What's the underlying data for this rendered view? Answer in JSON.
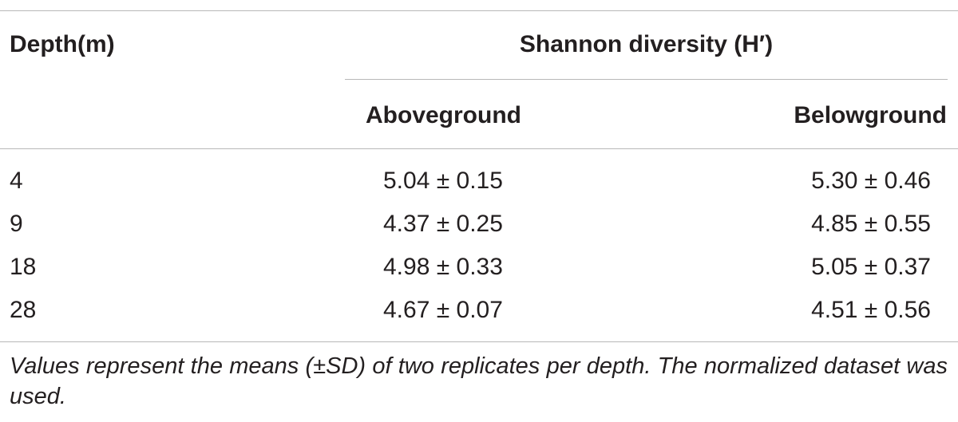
{
  "table": {
    "headers": {
      "depth": "Depth(m)",
      "group": "Shannon diversity (H′)",
      "aboveground": "Aboveground",
      "belowground": "Belowground"
    },
    "rows": [
      {
        "depth": "4",
        "aboveground": "5.04 ± 0.15",
        "belowground": "5.30 ± 0.46"
      },
      {
        "depth": "9",
        "aboveground": "4.37 ± 0.25",
        "belowground": "4.85 ± 0.55"
      },
      {
        "depth": "18",
        "aboveground": "4.98 ± 0.33",
        "belowground": "5.05 ± 0.37"
      },
      {
        "depth": "28",
        "aboveground": "4.67 ± 0.07",
        "belowground": "4.51 ± 0.56"
      }
    ],
    "footnote": "Values represent the means (±SD) of two replicates per depth. The normalized dataset was used."
  },
  "colors": {
    "text": "#231f20",
    "rules": "#b8b8b8"
  }
}
